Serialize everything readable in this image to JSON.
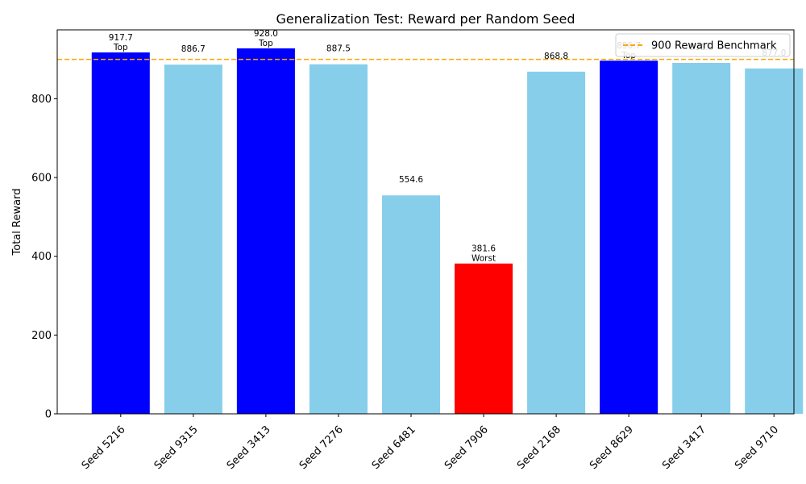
{
  "chart_data": {
    "type": "bar",
    "title": "Generalization Test: Reward per Random Seed",
    "xlabel": "",
    "ylabel": "Total Reward",
    "ylim": [
      0,
      975
    ],
    "yticks": [
      0,
      200,
      400,
      600,
      800
    ],
    "categories": [
      "Seed 5216",
      "Seed 9315",
      "Seed 3413",
      "Seed 7276",
      "Seed 6481",
      "Seed 7906",
      "Seed 2168",
      "Seed 8629",
      "Seed 3417",
      "Seed 9710"
    ],
    "values": [
      917.7,
      886.7,
      928.0,
      887.5,
      554.6,
      381.6,
      868.8,
      896.7,
      891.0,
      877.0
    ],
    "value_labels": [
      "917.7",
      "886.7",
      "928.0",
      "887.5",
      "554.6",
      "381.6",
      "868.8",
      "896.7",
      "891.0",
      "877.0"
    ],
    "annotations": [
      "Top",
      "",
      "Top",
      "",
      "",
      "Worst",
      "",
      "Top",
      "",
      ""
    ],
    "bar_colors": [
      "#0000ff",
      "#87ceeb",
      "#0000ff",
      "#87ceeb",
      "#87ceeb",
      "#ff0000",
      "#87ceeb",
      "#0000ff",
      "#87ceeb",
      "#87ceeb"
    ],
    "benchmark": {
      "value": 900,
      "label": "900 Reward Benchmark",
      "color": "#ffa500",
      "style": "dashed"
    },
    "legend_position": "top-right",
    "grid": false
  }
}
